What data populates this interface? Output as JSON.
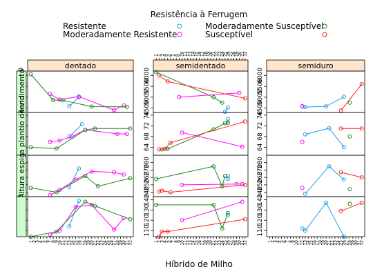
{
  "legend": {
    "title": "Resistência à Ferrugem",
    "items": [
      {
        "label": "Resistente",
        "color": "#1f9ee8"
      },
      {
        "label": "Moderadamente Resistente",
        "color": "#ff00ff"
      },
      {
        "label": "Moderadamente Susceptível",
        "color": "#1a8a1a"
      },
      {
        "label": "Susceptível",
        "color": "#ff2020"
      }
    ]
  },
  "xlabel": "Híbrido de Milho",
  "chart_data": {
    "type": "line",
    "xlabel": "Híbrido de Milho",
    "x_categories": [
      "1",
      "2",
      "3",
      "4",
      "5",
      "6",
      "7",
      "8",
      "9",
      "10",
      "11",
      "12",
      "13",
      "14",
      "15",
      "16",
      "17",
      "18",
      "19",
      "20",
      "21",
      "22",
      "23",
      "24",
      "25",
      "26",
      "27",
      "28",
      "29",
      "30",
      "31",
      "32"
    ],
    "columns": [
      "dentado",
      "semidentado",
      "semiduro"
    ],
    "rows": [
      {
        "name": "Rendimento",
        "ylim": [
          4300,
          6200
        ],
        "ticks": [
          4500,
          5000,
          5500,
          6000
        ]
      },
      {
        "name": "Altura plantio de vid",
        "ylim": [
          61,
          77
        ],
        "ticks": [
          64,
          68,
          72,
          76
        ]
      },
      {
        "name": "Altura espig",
        "ylim": [
          234,
          290
        ],
        "ticks": [
          240,
          250,
          260,
          270,
          280
        ]
      },
      {
        "name": "",
        "ylim": [
          104,
          143
        ],
        "ticks": [
          110,
          120,
          130,
          140
        ]
      }
    ],
    "series_names": [
      "Resistente",
      "Moderadamente Resistente",
      "Moderadamente Susceptível",
      "Susceptível"
    ],
    "panels": [
      {
        "row": 0,
        "col": 0,
        "series": [
          {
            "name": "Resistente",
            "x": [
              13,
              16
            ],
            "values": [
              4580,
              5000
            ]
          },
          {
            "name": "Moderadamente Resistente",
            "x": [
              7,
              10,
              16,
              27,
              30
            ],
            "values": [
              5150,
              4890,
              5030,
              4410,
              4620
            ]
          },
          {
            "name": "Moderadamente Susceptível",
            "x": [
              1,
              8,
              11,
              20,
              31
            ],
            "values": [
              6050,
              4870,
              4860,
              4570,
              4560
            ]
          }
        ]
      },
      {
        "row": 0,
        "col": 1,
        "series": [
          {
            "name": "Resistente",
            "x": [
              25,
              26
            ],
            "values": [
              4330,
              4530
            ]
          },
          {
            "name": "Moderadamente Resistente",
            "x": [
              9,
              30
            ],
            "values": [
              5000,
              5200
            ]
          },
          {
            "name": "Moderadamente Susceptível",
            "x": [
              1,
              21,
              24
            ],
            "values": [
              6150,
              5000,
              4750
            ]
          },
          {
            "name": "Susceptível",
            "x": [
              2,
              5,
              32
            ],
            "values": [
              6000,
              5720,
              4950
            ]
          }
        ]
      },
      {
        "row": 0,
        "col": 2,
        "series": [
          {
            "name": "Resistente",
            "x": [
              12,
              13,
              20,
              26
            ],
            "values": [
              4570,
              4550,
              4580,
              5020
            ]
          },
          {
            "name": "Moderadamente Resistente",
            "x": [
              12
            ],
            "values": [
              4590
            ]
          },
          {
            "name": "Moderadamente Susceptível",
            "x": [
              28
            ],
            "values": [
              4750
            ]
          },
          {
            "name": "Susceptível",
            "x": [
              25,
              32
            ],
            "values": [
              4390,
              5600
            ]
          }
        ]
      },
      {
        "row": 1,
        "col": 0,
        "series": [
          {
            "name": "Resistente",
            "x": [
              13,
              17
            ],
            "values": [
              68,
              72.6
            ]
          },
          {
            "name": "Moderadamente Resistente",
            "x": [
              7,
              10,
              14,
              18,
              28,
              31
            ],
            "values": [
              66,
              66.5,
              68,
              70.5,
              69,
              69
            ]
          },
          {
            "name": "Moderadamente Susceptível",
            "x": [
              1,
              9,
              18,
              21,
              32
            ],
            "values": [
              64,
              63.5,
              70.5,
              71,
              71
            ]
          }
        ]
      },
      {
        "row": 1,
        "col": 1,
        "series": [
          {
            "name": "Resistente",
            "x": [
              26,
              26
            ],
            "values": [
              73.2,
              74.6
            ]
          },
          {
            "name": "Moderadamente Resistente",
            "x": [
              10,
              31
            ],
            "values": [
              69.5,
              64.2
            ]
          },
          {
            "name": "Moderadamente Susceptível",
            "x": [
              3,
              5,
              21,
              25,
              26
            ],
            "values": [
              63.2,
              63.4,
              70.7,
              73,
              73.2
            ]
          },
          {
            "name": "Susceptível",
            "x": [
              2,
              4,
              6,
              32
            ],
            "values": [
              63.2,
              63.4,
              65.7,
              73.6
            ]
          }
        ]
      },
      {
        "row": 1,
        "col": 2,
        "series": [
          {
            "name": "Resistente",
            "x": [
              13,
              21,
              26
            ],
            "values": [
              68.8,
              71.1,
              64.1
            ]
          },
          {
            "name": "Moderadamente Resistente",
            "x": [
              12
            ],
            "values": [
              66
            ]
          },
          {
            "name": "Moderadamente Susceptível",
            "x": [
              28
            ],
            "values": [
              68
            ]
          },
          {
            "name": "Susceptível",
            "x": [
              25,
              32
            ],
            "values": [
              71,
              71
            ]
          }
        ]
      },
      {
        "row": 2,
        "col": 0,
        "series": [
          {
            "name": "Resistente",
            "x": [
              13,
              16
            ],
            "values": [
              247,
              272
            ]
          },
          {
            "name": "Moderadamente Resistente",
            "x": [
              7,
              10,
              15,
              20,
              27,
              30
            ],
            "values": [
              236,
              243,
              257,
              268,
              267,
              264
            ]
          },
          {
            "name": "Moderadamente Susceptível",
            "x": [
              1,
              9,
              18,
              22,
              32
            ],
            "values": [
              246,
              240,
              262,
              248,
              259
            ]
          }
        ]
      },
      {
        "row": 2,
        "col": 1,
        "series": [
          {
            "name": "Resistente",
            "x": [
              26,
              26
            ],
            "values": [
              258,
              262
            ]
          },
          {
            "name": "Moderadamente Resistente",
            "x": [
              10,
              29,
              31
            ],
            "values": [
              250,
              251,
              251
            ]
          },
          {
            "name": "Moderadamente Susceptível",
            "x": [
              1,
              21,
              24,
              25
            ],
            "values": [
              258,
              275,
              248,
              262
            ]
          },
          {
            "name": "Susceptível",
            "x": [
              2,
              3,
              6,
              32
            ],
            "values": [
              241,
              242,
              240,
              250
            ]
          }
        ]
      },
      {
        "row": 2,
        "col": 2,
        "series": [
          {
            "name": "Resistente",
            "x": [
              13,
              21,
              26
            ],
            "values": [
              238,
              275,
              257
            ]
          },
          {
            "name": "Moderadamente Resistente",
            "x": [
              12
            ],
            "values": [
              246
            ]
          },
          {
            "name": "Moderadamente Susceptível",
            "x": [
              28
            ],
            "values": [
              244
            ]
          },
          {
            "name": "Susceptível",
            "x": [
              25,
              32
            ],
            "values": [
              267,
              260
            ]
          }
        ]
      },
      {
        "row": 3,
        "col": 0,
        "series": [
          {
            "name": "Resistente",
            "x": [
              13,
              16
            ],
            "values": [
              114,
              139
            ]
          },
          {
            "name": "Moderadamente Resistente",
            "x": [
              7,
              10,
              15,
              20,
              27,
              30
            ],
            "values": [
              106,
              110,
              133,
              135,
              111,
              122
            ]
          },
          {
            "name": "Moderadamente Susceptível",
            "x": [
              1,
              9,
              18,
              21,
              32
            ],
            "values": [
              104,
              109,
              138,
              134,
              121
            ]
          }
        ]
      },
      {
        "row": 3,
        "col": 1,
        "series": [
          {
            "name": "Resistente",
            "x": [
              26
            ],
            "values": [
              125
            ]
          },
          {
            "name": "Moderadamente Resistente",
            "x": [
              10,
              31
            ],
            "values": [
              120,
              138
            ]
          },
          {
            "name": "Moderadamente Susceptível",
            "x": [
              1,
              21,
              24,
              26
            ],
            "values": [
              135,
              135,
              112,
              127
            ]
          },
          {
            "name": "Susceptível",
            "x": [
              2,
              3,
              5,
              32
            ],
            "values": [
              104,
              109,
              109,
              121
            ]
          }
        ]
      },
      {
        "row": 3,
        "col": 2,
        "series": [
          {
            "name": "Resistente",
            "x": [
              12,
              13,
              20,
              26
            ],
            "values": [
              112,
              110,
              137,
              104
            ]
          },
          {
            "name": "Moderadamente Susceptível",
            "x": [
              28
            ],
            "values": [
              136
            ]
          },
          {
            "name": "Susceptível",
            "x": [
              25,
              32
            ],
            "values": [
              129,
              137
            ]
          }
        ]
      }
    ]
  }
}
